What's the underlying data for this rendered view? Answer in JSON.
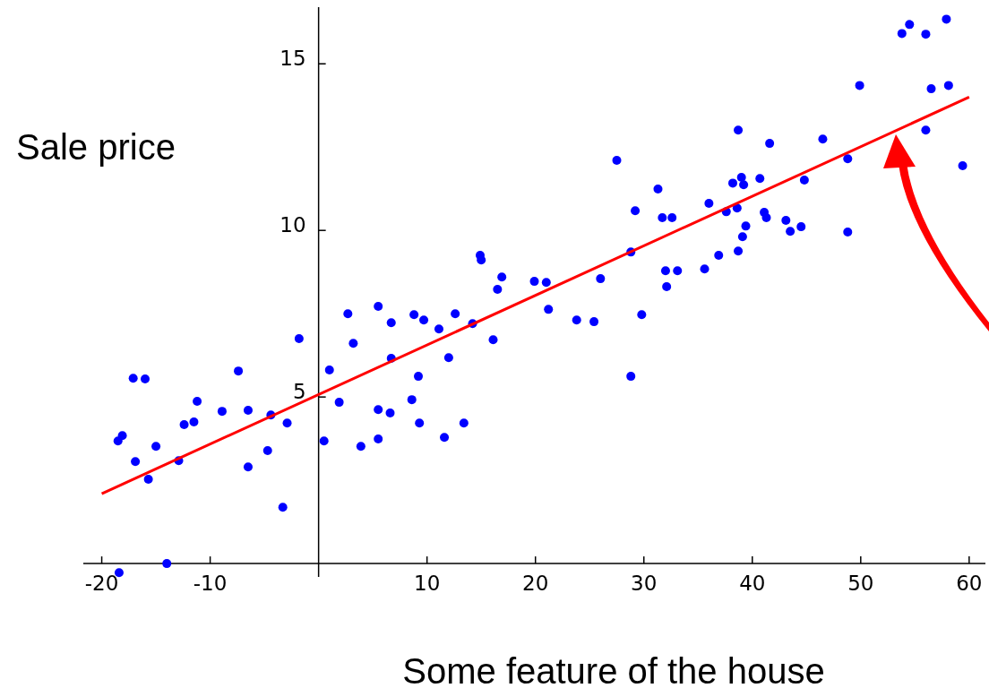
{
  "chart_data": {
    "type": "scatter",
    "xlabel": "Some feature of the house",
    "ylabel": "Sale price",
    "xlim": [
      -21.7,
      61.5
    ],
    "ylim": [
      -0.4,
      16.7
    ],
    "xticks": [
      -20,
      -10,
      10,
      20,
      30,
      40,
      50,
      60
    ],
    "yticks": [
      5,
      10,
      15
    ],
    "grid": false,
    "series": [
      {
        "marker": "circle",
        "color": "#0000ff",
        "x": [
          -18.5,
          -18.1,
          -17.1,
          -16.0,
          -16.9,
          -15.7,
          -15.0,
          -12.9,
          -12.4,
          -11.5,
          -11.2,
          -8.9,
          -7.4,
          -6.5,
          -6.5,
          -4.7,
          -4.4,
          -3.3,
          -2.9,
          -1.8,
          -14.0,
          -18.4,
          1.9,
          3.9,
          1.0,
          0.5,
          2.7,
          3.2,
          5.5,
          6.7,
          6.7,
          5.5,
          6.6,
          5.5,
          8.6,
          8.8,
          9.7,
          9.2,
          9.3,
          11.1,
          12.0,
          11.6,
          13.4,
          12.6,
          14.2,
          14.9,
          15.0,
          16.1,
          16.5,
          16.9,
          19.9,
          21.0,
          21.2,
          23.8,
          25.4,
          26.0,
          28.8,
          28.8,
          27.5,
          29.2,
          29.8,
          31.3,
          31.7,
          32.6,
          32.0,
          33.1,
          32.1,
          35.6,
          36.9,
          38.7,
          39.1,
          39.4,
          36.0,
          37.6,
          38.6,
          38.2,
          39.0,
          39.2,
          40.7,
          38.7,
          41.6,
          41.1,
          41.3,
          43.1,
          43.5,
          44.5,
          44.8,
          46.5,
          48.8,
          48.8,
          49.9,
          53.8,
          54.5,
          56.0,
          57.9,
          56.5,
          58.1,
          56.0,
          59.4
        ],
        "values": [
          3.68,
          3.84,
          5.56,
          5.54,
          3.06,
          2.53,
          3.52,
          3.09,
          4.17,
          4.25,
          4.87,
          4.57,
          5.78,
          4.6,
          2.9,
          3.39,
          4.46,
          1.69,
          4.22,
          6.75,
          0.0,
          -0.27,
          4.84,
          3.52,
          5.81,
          3.68,
          7.5,
          6.61,
          7.72,
          7.23,
          6.16,
          4.62,
          4.52,
          3.74,
          4.92,
          7.47,
          7.31,
          5.62,
          4.22,
          7.04,
          6.18,
          3.79,
          4.22,
          7.5,
          7.2,
          9.25,
          9.11,
          6.72,
          8.23,
          8.6,
          8.47,
          8.44,
          7.63,
          7.31,
          7.26,
          8.55,
          5.62,
          9.35,
          12.1,
          10.59,
          7.47,
          11.24,
          10.38,
          10.38,
          8.79,
          8.79,
          8.31,
          8.84,
          9.25,
          9.38,
          9.81,
          10.13,
          10.81,
          10.56,
          10.67,
          11.42,
          11.59,
          11.37,
          11.56,
          13.01,
          12.61,
          10.54,
          10.38,
          10.3,
          9.97,
          10.11,
          11.51,
          12.74,
          12.15,
          9.95,
          14.35,
          15.91,
          16.18,
          15.89,
          16.34,
          14.25,
          14.35,
          13.01,
          11.94
        ]
      },
      {
        "type": "line",
        "color": "#ff0000",
        "x": [
          -20,
          60
        ],
        "values": [
          2.1,
          14.0
        ]
      }
    ]
  }
}
